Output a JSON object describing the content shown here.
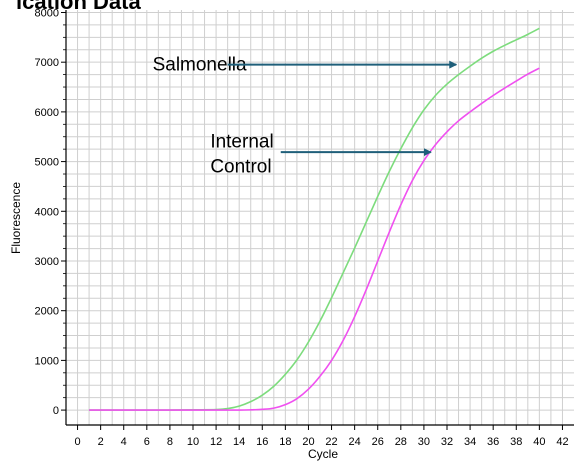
{
  "title_fragment": "ication Data",
  "chart_data": {
    "type": "line",
    "xlabel": "Cycle",
    "ylabel": "Fluorescence",
    "xlim": [
      -1,
      43
    ],
    "ylim": [
      -300,
      8050
    ],
    "x_ticks": [
      0,
      2,
      4,
      6,
      8,
      10,
      12,
      14,
      16,
      18,
      20,
      22,
      24,
      26,
      28,
      30,
      32,
      34,
      36,
      38,
      40,
      42
    ],
    "x_tick_labels": [
      "0",
      "2",
      "4",
      "6",
      "8",
      "10",
      "12",
      "14",
      "16",
      "18",
      "20",
      "22",
      "24",
      "26",
      "28",
      "30",
      "32",
      "34",
      "36",
      "38",
      "40",
      "42"
    ],
    "y_ticks": [
      0,
      1000,
      2000,
      3000,
      4000,
      5000,
      6000,
      7000,
      8000
    ],
    "y_tick_labels": [
      "0",
      "1000",
      "2000",
      "3000",
      "4000",
      "5000",
      "6000",
      "7000",
      "8000"
    ],
    "grid": true,
    "series": [
      {
        "name": "Salmonella",
        "color": "#7ddc7d",
        "x": [
          1,
          2,
          4,
          6,
          8,
          10,
          12,
          13,
          14,
          15,
          16,
          17,
          18,
          19,
          20,
          21,
          22,
          23,
          24,
          25,
          26,
          27,
          28,
          29,
          30,
          31,
          32,
          33,
          34,
          35,
          36,
          37,
          38,
          39,
          40
        ],
        "y": [
          0,
          0,
          0,
          0,
          0,
          5,
          10,
          30,
          80,
          170,
          300,
          480,
          720,
          1010,
          1370,
          1790,
          2260,
          2760,
          3260,
          3780,
          4300,
          4800,
          5260,
          5680,
          6040,
          6330,
          6560,
          6750,
          6920,
          7080,
          7220,
          7340,
          7450,
          7560,
          7680
        ]
      },
      {
        "name": "Internal Control",
        "color": "#f050f0",
        "x": [
          1,
          2,
          4,
          6,
          8,
          10,
          12,
          14,
          15,
          16,
          17,
          18,
          19,
          20,
          21,
          22,
          23,
          24,
          25,
          26,
          27,
          28,
          29,
          30,
          31,
          32,
          33,
          34,
          35,
          36,
          37,
          38,
          39,
          40
        ],
        "y": [
          0,
          0,
          0,
          0,
          0,
          0,
          0,
          0,
          5,
          15,
          40,
          110,
          230,
          420,
          680,
          1000,
          1400,
          1880,
          2420,
          3000,
          3580,
          4130,
          4620,
          5020,
          5340,
          5600,
          5820,
          6000,
          6170,
          6330,
          6480,
          6620,
          6760,
          6880
        ]
      }
    ],
    "annotations": [
      {
        "lines": [
          "Salmonella"
        ],
        "x": 6.5,
        "y": 6950,
        "arrow_from": [
          13,
          6950
        ],
        "arrow_to": [
          32.8,
          6950
        ]
      },
      {
        "lines": [
          "Internal",
          "Control"
        ],
        "x": 11.5,
        "y": 5400,
        "arrow_from": [
          17.6,
          5190
        ],
        "arrow_to": [
          30.6,
          5190
        ]
      }
    ]
  },
  "colors": {
    "grid": "#cfcfcf",
    "axis": "#000000",
    "arrow": "#1f5f7a"
  }
}
